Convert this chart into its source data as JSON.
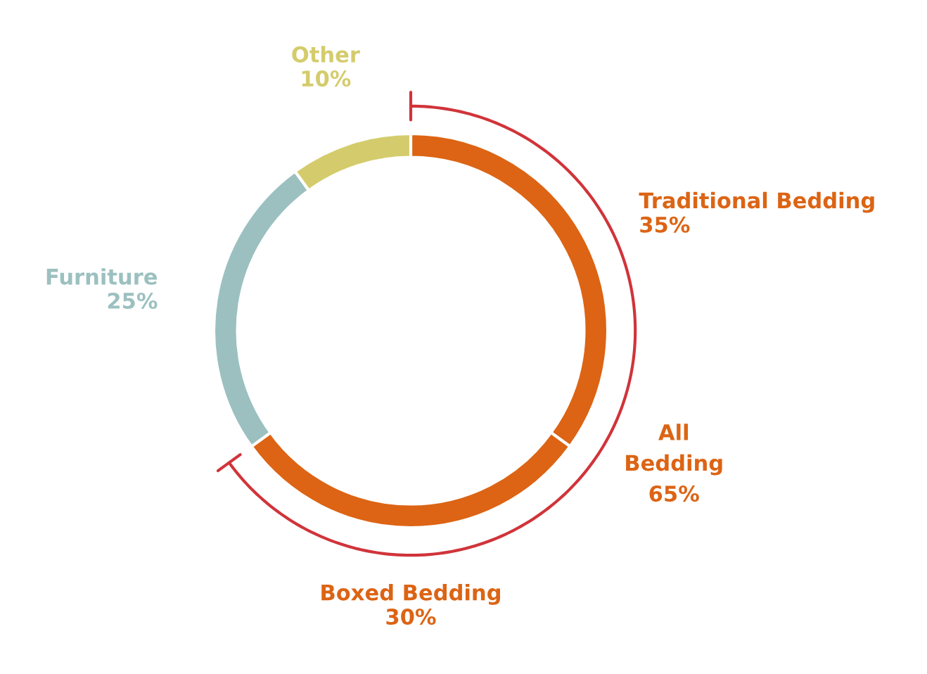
{
  "chart_data": {
    "type": "donut",
    "categories": [
      "Traditional Bedding",
      "Boxed Bedding",
      "Furniture",
      "Other"
    ],
    "values": [
      35,
      30,
      25,
      10
    ],
    "value_labels": [
      "35%",
      "30%",
      "25%",
      "10%"
    ],
    "colors": [
      "#dc6414",
      "#dc6414",
      "#9cc0c0",
      "#d4cc6c"
    ],
    "annotations": [
      "All\nBedding\n65%"
    ]
  }
}
